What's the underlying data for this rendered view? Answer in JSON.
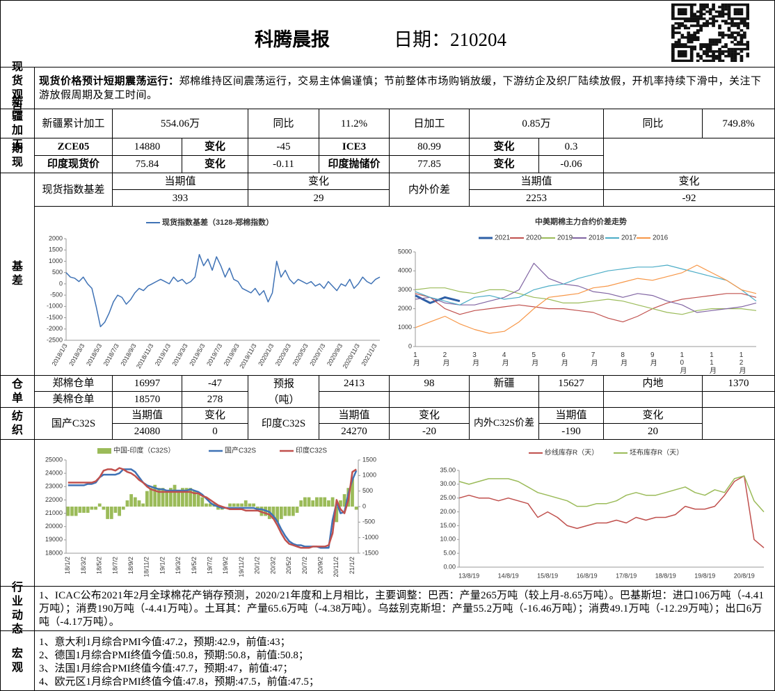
{
  "header": {
    "title": "科腾晨报",
    "date": "日期：210204"
  },
  "spot_view": {
    "label": "现货观点",
    "lead": "现货价格预计短期震荡运行：",
    "text": "郑棉维持区间震荡运行，交易主体偏谨慎；节前整体市场购销放缓，下游纺企及织厂陆续放假，开机率持续下滑中，关注下游放假周期及复工时间。"
  },
  "xinjiang": {
    "label": "新疆加工",
    "cells": [
      "新疆累计加工",
      "554.06万",
      "同比",
      "11.2%",
      "日加工",
      "0.85万",
      "同比",
      "749.8%"
    ]
  },
  "futures_spot": {
    "label": "期现",
    "rows": [
      [
        "ZCE05",
        "14880",
        "变化",
        "-45",
        "ICE3",
        "80.99",
        "变化",
        "0.3"
      ],
      [
        "印度现货价",
        "75.84",
        "变化",
        "-0.11",
        "印度抛储价",
        "77.85",
        "变化",
        "-0.06"
      ]
    ]
  },
  "basis": {
    "label": "基差",
    "headers": [
      "现货指数基差",
      "当期值",
      "变化",
      "内外价差",
      "当期值",
      "变化"
    ],
    "values": [
      "393",
      "29",
      "2253",
      "-92"
    ]
  },
  "warehouse": {
    "label": "仓单",
    "rows": [
      [
        "郑棉仓单",
        "16997",
        "-47",
        "预报",
        "2413",
        "98",
        "新疆",
        "15627",
        "内地",
        "1370"
      ],
      [
        "美棉仓单",
        "18570",
        "278",
        "（吨）"
      ]
    ]
  },
  "textile": {
    "label": "纺织",
    "rows": [
      [
        "国产C32S",
        "当期值",
        "变化",
        "印度C32S",
        "当期值",
        "变化",
        "内外C32S价差",
        "当期值",
        "变化"
      ],
      [
        "24080",
        "0",
        "24270",
        "-20",
        "-190",
        "20"
      ]
    ]
  },
  "industry": {
    "label": "行业动态",
    "text": "1、ICAC公布2021年2月全球棉花产销存预测，2020/21年度和上月相比，主要调整：巴西：产量265万吨（较上月-8.65万吨）。巴基斯坦：进口106万吨（-4.41万吨）；消费190万吨（-4.41万吨）。土耳其：产量65.6万吨（-4.38万吨）。乌兹别克斯坦：产量55.2万吨（-16.46万吨）；消费49.1万吨（-12.29万吨）；出口6万吨（-4.17万吨）。"
  },
  "macro": {
    "label": "宏观",
    "lines": [
      "1、意大利1月综合PMI今值:47.2，预期:42.9，前值:43；",
      "2、德国1月综合PMI终值今值:50.8，预期:50.8，前值:50.8；",
      "3、法国1月综合PMI终值今值:47.7，预期:47，前值:47；",
      "4、欧元区1月综合PMI终值今值:47.8，预期:47.5，前值:47.5；"
    ]
  },
  "chart_data": [
    {
      "type": "line",
      "categories": [
        "2018/1/3",
        null,
        null,
        null,
        "2018/3/3",
        null,
        null,
        null,
        "2018/5/3",
        null,
        null,
        null,
        "2018/7/3",
        null,
        null,
        null,
        "2018/9/3",
        null,
        null,
        null,
        "2018/11/3",
        null,
        null,
        null,
        "2019/1/3",
        null,
        null,
        null,
        "2019/3/3",
        null,
        null,
        null,
        "2019/5/3",
        null,
        null,
        null,
        "2019/7/3",
        null,
        null,
        null,
        "2019/9/3",
        null,
        null,
        null,
        "2019/11/3",
        null,
        null,
        null,
        "2020/1/3",
        null,
        null,
        null,
        "2020/3/3",
        null,
        null,
        null,
        "2020/5/3",
        null,
        null,
        null,
        "2020/7/3",
        null,
        null,
        null,
        "2020/9/3",
        null,
        null,
        null,
        "2020/11/3",
        null,
        null,
        null,
        "2021/1/3",
        null
      ],
      "series": [
        {
          "name": "现货指数基差（3128-郑棉指数）",
          "color": "#3f72b5",
          "values": [
            500,
            300,
            250,
            100,
            300,
            0,
            -200,
            -1000,
            -1900,
            -1700,
            -1300,
            -800,
            -500,
            -600,
            -900,
            -700,
            -400,
            -200,
            -300,
            -100,
            0,
            100,
            200,
            100,
            0,
            300,
            100,
            200,
            0,
            100,
            300,
            1300,
            800,
            1100,
            600,
            1200,
            800,
            300,
            700,
            200,
            100,
            -200,
            -300,
            -400,
            -200,
            -500,
            -300,
            -800,
            -400,
            1000,
            300,
            600,
            200,
            0,
            200,
            100,
            0,
            100,
            -100,
            0,
            -200,
            100,
            -100,
            -300,
            0,
            -100,
            200,
            -200,
            0,
            300,
            100,
            0,
            200,
            300
          ]
        }
      ],
      "ylim": [
        -2500,
        2000
      ],
      "yticks": [
        2000,
        1500,
        1000,
        500,
        0,
        -500,
        -1000,
        -1500,
        -2000,
        -2500
      ]
    },
    {
      "type": "line",
      "title": "中美期棉主力合约价差走势",
      "categories": [
        "1月",
        null,
        "2月",
        null,
        "3月",
        null,
        "4月",
        null,
        "5月",
        null,
        "6月",
        null,
        "7月",
        null,
        "8月",
        null,
        "9月",
        null,
        "10月",
        null,
        "11月",
        null,
        "12月",
        null
      ],
      "series": [
        {
          "name": "2021",
          "color": "#2e5fa6",
          "values": [
            2700,
            2300,
            2600,
            2400,
            null,
            null,
            null,
            null,
            null,
            null,
            null,
            null,
            null,
            null,
            null,
            null,
            null,
            null,
            null,
            null,
            null,
            null,
            null,
            null
          ]
        },
        {
          "name": "2020",
          "color": "#c0504d",
          "values": [
            2800,
            2600,
            2000,
            1700,
            1900,
            2000,
            2100,
            2200,
            2100,
            2000,
            2000,
            1900,
            1800,
            1500,
            1300,
            1600,
            2000,
            2300,
            2500,
            2600,
            2700,
            2800,
            2800,
            2600
          ]
        },
        {
          "name": "2019",
          "color": "#9bbb59",
          "values": [
            3000,
            3100,
            3100,
            2900,
            2800,
            3000,
            3000,
            2800,
            2600,
            2500,
            2300,
            2300,
            2400,
            2500,
            2400,
            2200,
            2000,
            1800,
            1700,
            1900,
            2000,
            2000,
            2000,
            1900
          ]
        },
        {
          "name": "2018",
          "color": "#8064a2",
          "values": [
            2500,
            2600,
            2300,
            2200,
            2200,
            2400,
            2600,
            3000,
            4400,
            3600,
            3300,
            3200,
            2900,
            2800,
            2600,
            2800,
            2700,
            2400,
            2200,
            1800,
            1900,
            2000,
            2100,
            2300
          ]
        },
        {
          "name": "2017",
          "color": "#4bacc6",
          "values": [
            2900,
            2600,
            2400,
            2200,
            2600,
            2700,
            2500,
            2600,
            3000,
            3200,
            3300,
            3600,
            3800,
            4000,
            4100,
            4200,
            4200,
            4300,
            4100,
            3900,
            3700,
            3500,
            3000,
            2400
          ]
        },
        {
          "name": "2016",
          "color": "#f79646",
          "values": [
            1000,
            1300,
            1600,
            1200,
            900,
            700,
            800,
            1300,
            2000,
            2600,
            2700,
            2800,
            3100,
            3200,
            3400,
            3600,
            3500,
            3700,
            3900,
            4300,
            3900,
            3500,
            3000,
            2800
          ]
        }
      ],
      "ylim": [
        0,
        5000
      ],
      "yticks": [
        0,
        1000,
        2000,
        3000,
        4000,
        5000
      ]
    },
    {
      "type": "combo",
      "categories": [
        "18/1/2",
        null,
        null,
        null,
        "18/3/2",
        null,
        null,
        null,
        "18/5/2",
        null,
        null,
        null,
        "18/7/2",
        null,
        null,
        null,
        "18/9/2",
        null,
        null,
        null,
        "18/11/2",
        null,
        null,
        null,
        "19/1/2",
        null,
        null,
        null,
        "19/3/2",
        null,
        null,
        null,
        "19/5/2",
        null,
        null,
        null,
        "19/7/2",
        null,
        null,
        null,
        "19/9/2",
        null,
        null,
        null,
        "19/11/2",
        null,
        null,
        null,
        "20/1/2",
        null,
        null,
        null,
        "20/3/2",
        null,
        null,
        null,
        "20/5/2",
        null,
        null,
        null,
        "20/7/2",
        null,
        null,
        null,
        "20/9/2",
        null,
        null,
        null,
        "20/11/2",
        null,
        null,
        null,
        "21/1/2",
        null
      ],
      "series": [
        {
          "name": "中国-印度（C32S）",
          "type": "bar",
          "axis": "y2",
          "color": "#9bbb59",
          "values": [
            -300,
            -300,
            -300,
            -200,
            -200,
            -200,
            -100,
            -100,
            100,
            -100,
            -400,
            -400,
            -200,
            -300,
            -100,
            200,
            400,
            300,
            200,
            100,
            500,
            600,
            700,
            600,
            600,
            500,
            600,
            700,
            500,
            600,
            600,
            600,
            500,
            400,
            300,
            100,
            100,
            100,
            -100,
            -100,
            0,
            100,
            100,
            100,
            100,
            200,
            100,
            100,
            -100,
            -300,
            -300,
            -400,
            -400,
            -500,
            -400,
            -300,
            -300,
            -300,
            -200,
            200,
            300,
            300,
            200,
            300,
            300,
            300,
            200,
            300,
            -500,
            200,
            400,
            600,
            900,
            -100
          ]
        },
        {
          "name": "国产C32S",
          "type": "line",
          "color": "#3f72b5",
          "values": [
            23100,
            23100,
            23100,
            23100,
            23100,
            23200,
            23200,
            23300,
            23700,
            23900,
            23900,
            23900,
            23900,
            24000,
            24300,
            24300,
            24300,
            24100,
            23700,
            23300,
            23100,
            23000,
            22900,
            22800,
            22800,
            22700,
            22700,
            22700,
            22700,
            22700,
            22700,
            22800,
            22700,
            22600,
            22400,
            22100,
            21800,
            21600,
            21500,
            21400,
            21400,
            21400,
            21400,
            21400,
            21400,
            21400,
            21400,
            21400,
            21300,
            21300,
            21200,
            21100,
            20800,
            20400,
            19800,
            19300,
            18900,
            18700,
            18600,
            18600,
            18500,
            18500,
            18500,
            18500,
            18400,
            18400,
            18400,
            20500,
            21800,
            21000,
            21100,
            22500,
            23500,
            24200
          ]
        },
        {
          "name": "印度C32S",
          "type": "line",
          "color": "#c0504d",
          "values": [
            23300,
            23300,
            23300,
            23300,
            23300,
            23300,
            23300,
            23400,
            23700,
            24200,
            24300,
            24300,
            24200,
            24400,
            24300,
            24100,
            24000,
            23800,
            23500,
            23300,
            23000,
            22800,
            22700,
            22600,
            22600,
            22600,
            22600,
            22600,
            22600,
            22600,
            22600,
            22600,
            22500,
            22500,
            22300,
            22200,
            22000,
            21800,
            21600,
            21500,
            21400,
            21300,
            21300,
            21300,
            21300,
            21200,
            21200,
            21200,
            21200,
            21100,
            21000,
            20900,
            20600,
            20100,
            19500,
            19000,
            18700,
            18600,
            18500,
            18400,
            18400,
            18400,
            18500,
            18500,
            18500,
            18500,
            18600,
            19500,
            22000,
            21300,
            21000,
            22000,
            24100,
            24300
          ]
        }
      ],
      "ylim": [
        18000,
        25000
      ],
      "yticks": [
        18000,
        19000,
        20000,
        21000,
        22000,
        23000,
        24000,
        25000
      ],
      "y2lim": [
        -1500,
        1500
      ],
      "y2ticks": [
        -1500,
        -1000,
        -500,
        0,
        500,
        1000,
        1500
      ]
    },
    {
      "type": "line",
      "categories": [
        null,
        "13/8/19",
        null,
        null,
        null,
        "14/8/19",
        null,
        null,
        null,
        "15/8/19",
        null,
        null,
        null,
        "16/8/19",
        null,
        null,
        null,
        "17/8/19",
        null,
        null,
        null,
        "18/8/19",
        null,
        null,
        null,
        "19/8/19",
        null,
        null,
        null,
        "20/8/19",
        null,
        null
      ],
      "series": [
        {
          "name": "纱线库存R（天）",
          "color": "#c0504d",
          "values": [
            25,
            26,
            25,
            25,
            24,
            25,
            24,
            23,
            18,
            20,
            18,
            15,
            14,
            15,
            16,
            16,
            17,
            16,
            18,
            17,
            18,
            18,
            19,
            22,
            21,
            21,
            22,
            26,
            31,
            33,
            10,
            7
          ]
        },
        {
          "name": "坯布库存R（天）",
          "color": "#9bbb59",
          "values": [
            31,
            30,
            31,
            32,
            32,
            32,
            31,
            29,
            27,
            26,
            25,
            24,
            22,
            22,
            23,
            23,
            24,
            26,
            27,
            26,
            26,
            27,
            28,
            29,
            27,
            26,
            28,
            27,
            32,
            33,
            24,
            20
          ]
        }
      ],
      "ylim": [
        0,
        35
      ],
      "yticks": [
        {
          "value": 0,
          "label": "0.00"
        },
        {
          "value": 5,
          "label": "5.00"
        },
        {
          "value": 10,
          "label": "10.00"
        },
        {
          "value": 15,
          "label": "15.00"
        },
        {
          "value": 20,
          "label": "20.00"
        },
        {
          "value": 25,
          "label": "25.00"
        },
        {
          "value": 30,
          "label": "30.00"
        },
        {
          "value": 35,
          "label": "35.00"
        }
      ]
    }
  ]
}
